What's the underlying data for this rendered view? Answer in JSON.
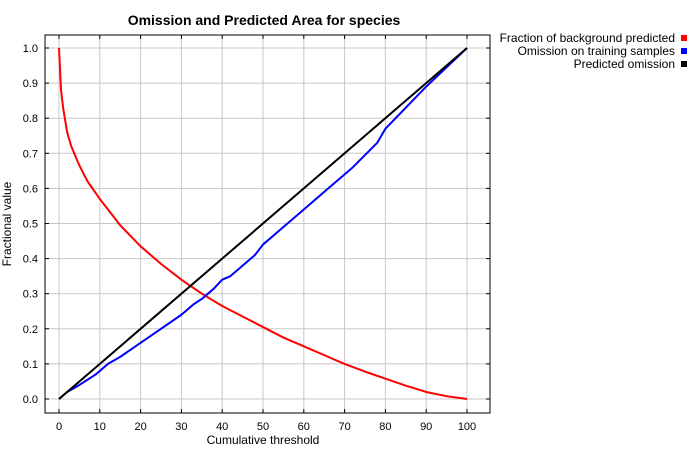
{
  "chart_data": {
    "type": "line",
    "title": "Omission and Predicted Area for species",
    "xlabel": "Cumulative threshold",
    "ylabel": "Fractional value",
    "xlim": [
      0,
      100
    ],
    "ylim": [
      0,
      1
    ],
    "x_ticks": [
      0,
      10,
      20,
      30,
      40,
      50,
      60,
      70,
      80,
      90,
      100
    ],
    "y_ticks": [
      0.0,
      0.1,
      0.2,
      0.3,
      0.4,
      0.5,
      0.6,
      0.7,
      0.8,
      0.9,
      1.0
    ],
    "x_tick_labels": [
      "0",
      "10",
      "20",
      "30",
      "40",
      "50",
      "60",
      "70",
      "80",
      "90",
      "100"
    ],
    "y_tick_labels": [
      "0.0",
      "0.1",
      "0.2",
      "0.3",
      "0.4",
      "0.5",
      "0.6",
      "0.7",
      "0.8",
      "0.9",
      "1.0"
    ],
    "grid": true,
    "legend_position": "outside-top-right",
    "series": [
      {
        "name": "Fraction of background predicted",
        "color": "#ff0000",
        "x": [
          0,
          0.5,
          1,
          2,
          3,
          5,
          7,
          10,
          15,
          20,
          25,
          30,
          35,
          40,
          45,
          50,
          55,
          60,
          65,
          70,
          75,
          80,
          85,
          90,
          95,
          100
        ],
        "y": [
          1.0,
          0.88,
          0.83,
          0.76,
          0.72,
          0.665,
          0.62,
          0.57,
          0.495,
          0.435,
          0.385,
          0.34,
          0.3,
          0.265,
          0.235,
          0.205,
          0.175,
          0.15,
          0.125,
          0.1,
          0.078,
          0.058,
          0.038,
          0.02,
          0.008,
          0.0
        ]
      },
      {
        "name": "Omission on training samples",
        "color": "#0000ff",
        "x": [
          0,
          2,
          5,
          7,
          9,
          12,
          15,
          20,
          25,
          30,
          33,
          35,
          38,
          40,
          42,
          45,
          48,
          50,
          55,
          60,
          65,
          70,
          72,
          75,
          78,
          80,
          85,
          90,
          95,
          100
        ],
        "y": [
          0.0,
          0.02,
          0.04,
          0.055,
          0.07,
          0.1,
          0.12,
          0.16,
          0.2,
          0.24,
          0.27,
          0.285,
          0.315,
          0.34,
          0.35,
          0.38,
          0.41,
          0.44,
          0.49,
          0.54,
          0.59,
          0.64,
          0.66,
          0.695,
          0.73,
          0.77,
          0.83,
          0.89,
          0.945,
          1.0
        ]
      },
      {
        "name": "Predicted omission",
        "color": "#000000",
        "x": [
          0,
          100
        ],
        "y": [
          0.0,
          1.0
        ]
      }
    ]
  }
}
